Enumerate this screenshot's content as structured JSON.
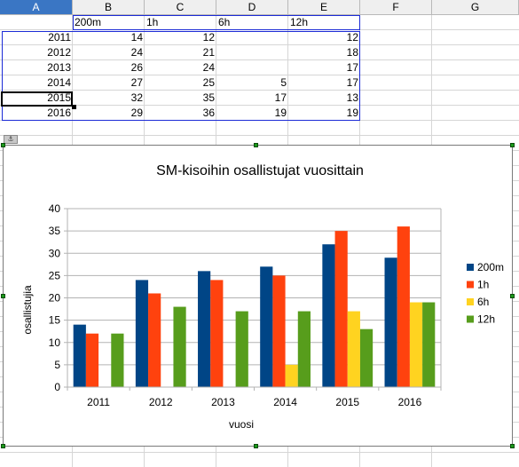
{
  "spreadsheet": {
    "columns": [
      "A",
      "B",
      "C",
      "D",
      "E",
      "F",
      "G"
    ],
    "active_column": "A",
    "header_row": [
      "",
      "200m",
      "1h",
      "6h",
      "12h"
    ],
    "rows": [
      {
        "year": "2011",
        "v200m": "14",
        "v1h": "12",
        "v6h": "",
        "v12h": "12"
      },
      {
        "year": "2012",
        "v200m": "24",
        "v1h": "21",
        "v6h": "",
        "v12h": "18"
      },
      {
        "year": "2013",
        "v200m": "26",
        "v1h": "24",
        "v6h": "",
        "v12h": "17"
      },
      {
        "year": "2014",
        "v200m": "27",
        "v1h": "25",
        "v6h": "5",
        "v12h": "17"
      },
      {
        "year": "2015",
        "v200m": "32",
        "v1h": "35",
        "v6h": "17",
        "v12h": "13"
      },
      {
        "year": "2016",
        "v200m": "29",
        "v1h": "36",
        "v6h": "19",
        "v12h": "19"
      }
    ]
  },
  "chart_data": {
    "type": "bar",
    "title": "SM-kisoihin osallistujat vuosittain",
    "xlabel": "vuosi",
    "ylabel": "osallistujia",
    "categories": [
      "2011",
      "2012",
      "2013",
      "2014",
      "2015",
      "2016"
    ],
    "ylim": [
      0,
      40
    ],
    "yticks": [
      "0",
      "5",
      "10",
      "15",
      "20",
      "25",
      "30",
      "35",
      "40"
    ],
    "grid": true,
    "legend_position": "right",
    "series": [
      {
        "name": "200m",
        "color": "#004586",
        "values": [
          14,
          24,
          26,
          27,
          32,
          29
        ]
      },
      {
        "name": "1h",
        "color": "#ff420e",
        "values": [
          12,
          21,
          24,
          25,
          35,
          36
        ]
      },
      {
        "name": "6h",
        "color": "#ffd320",
        "values": [
          null,
          null,
          null,
          5,
          17,
          19
        ]
      },
      {
        "name": "12h",
        "color": "#579d1c",
        "values": [
          12,
          18,
          17,
          17,
          13,
          19
        ]
      }
    ]
  }
}
